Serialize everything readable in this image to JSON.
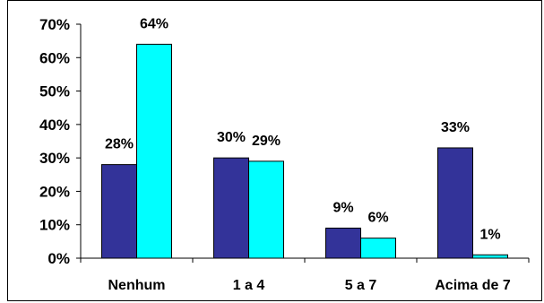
{
  "chart_data": {
    "type": "bar",
    "categories": [
      "Nenhum",
      "1 a 4",
      "5 a 7",
      "Acima de 7"
    ],
    "series": [
      {
        "color": "#333399",
        "values": [
          28,
          30,
          9,
          33
        ],
        "labels": [
          "28%",
          "30%",
          "9%",
          "33%"
        ]
      },
      {
        "color": "#00FFFF",
        "values": [
          64,
          29,
          6,
          1
        ],
        "labels": [
          "64%",
          "29%",
          "6%",
          "1%"
        ]
      }
    ],
    "yticks": [
      "0%",
      "10%",
      "20%",
      "30%",
      "40%",
      "50%",
      "60%",
      "70%"
    ],
    "ylim": [
      0,
      70
    ],
    "grid": false,
    "legend": "none"
  }
}
